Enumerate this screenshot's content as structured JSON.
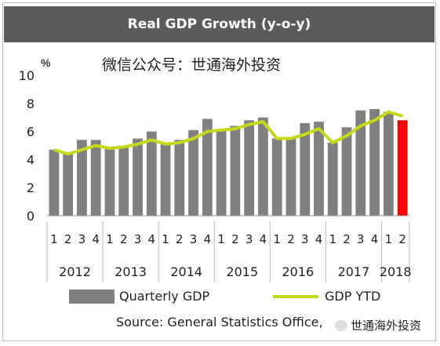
{
  "watermark": "微信公众号：世通海外投资",
  "colors": {
    "bar": "#808080",
    "highlight_bar": "#ff0000",
    "line": "#c5d91a",
    "title_bg": "#5b5b5b"
  },
  "chart_data": {
    "type": "bar",
    "title": "Real GDP Growth (y-o-y)",
    "ylabel": "%",
    "ylim": [
      0,
      10
    ],
    "yticks": [
      0,
      2,
      4,
      6,
      8,
      10
    ],
    "quarters": [
      "1",
      "2",
      "3",
      "4",
      "1",
      "2",
      "3",
      "4",
      "1",
      "2",
      "3",
      "4",
      "1",
      "2",
      "3",
      "4",
      "1",
      "2",
      "3",
      "4",
      "1",
      "2",
      "3",
      "4",
      "1",
      "2"
    ],
    "years": [
      "2012",
      "2013",
      "2014",
      "2015",
      "2016",
      "2017",
      "2018"
    ],
    "series": [
      {
        "name": "Quarterly GDP",
        "values": [
          4.7,
          4.5,
          5.4,
          5.4,
          4.8,
          5.0,
          5.5,
          6.0,
          5.1,
          5.4,
          6.1,
          6.9,
          6.1,
          6.4,
          6.8,
          7.0,
          5.5,
          5.6,
          6.6,
          6.7,
          5.2,
          6.3,
          7.5,
          7.6,
          7.4,
          6.8
        ]
      },
      {
        "name": "GDP YTD",
        "values": [
          4.7,
          4.4,
          4.7,
          5.0,
          4.8,
          4.9,
          5.1,
          5.4,
          5.1,
          5.2,
          5.5,
          6.0,
          6.1,
          6.2,
          6.5,
          6.7,
          5.5,
          5.5,
          5.8,
          6.2,
          5.2,
          5.7,
          6.4,
          6.8,
          7.4,
          7.1
        ]
      }
    ],
    "highlight_index": 25,
    "legend": {
      "bar": "Quarterly GDP",
      "line": "GDP YTD",
      "position": "bottom"
    },
    "source": "Source: General Statistics Office,",
    "grid": false
  },
  "badge_text": "世通海外投资"
}
